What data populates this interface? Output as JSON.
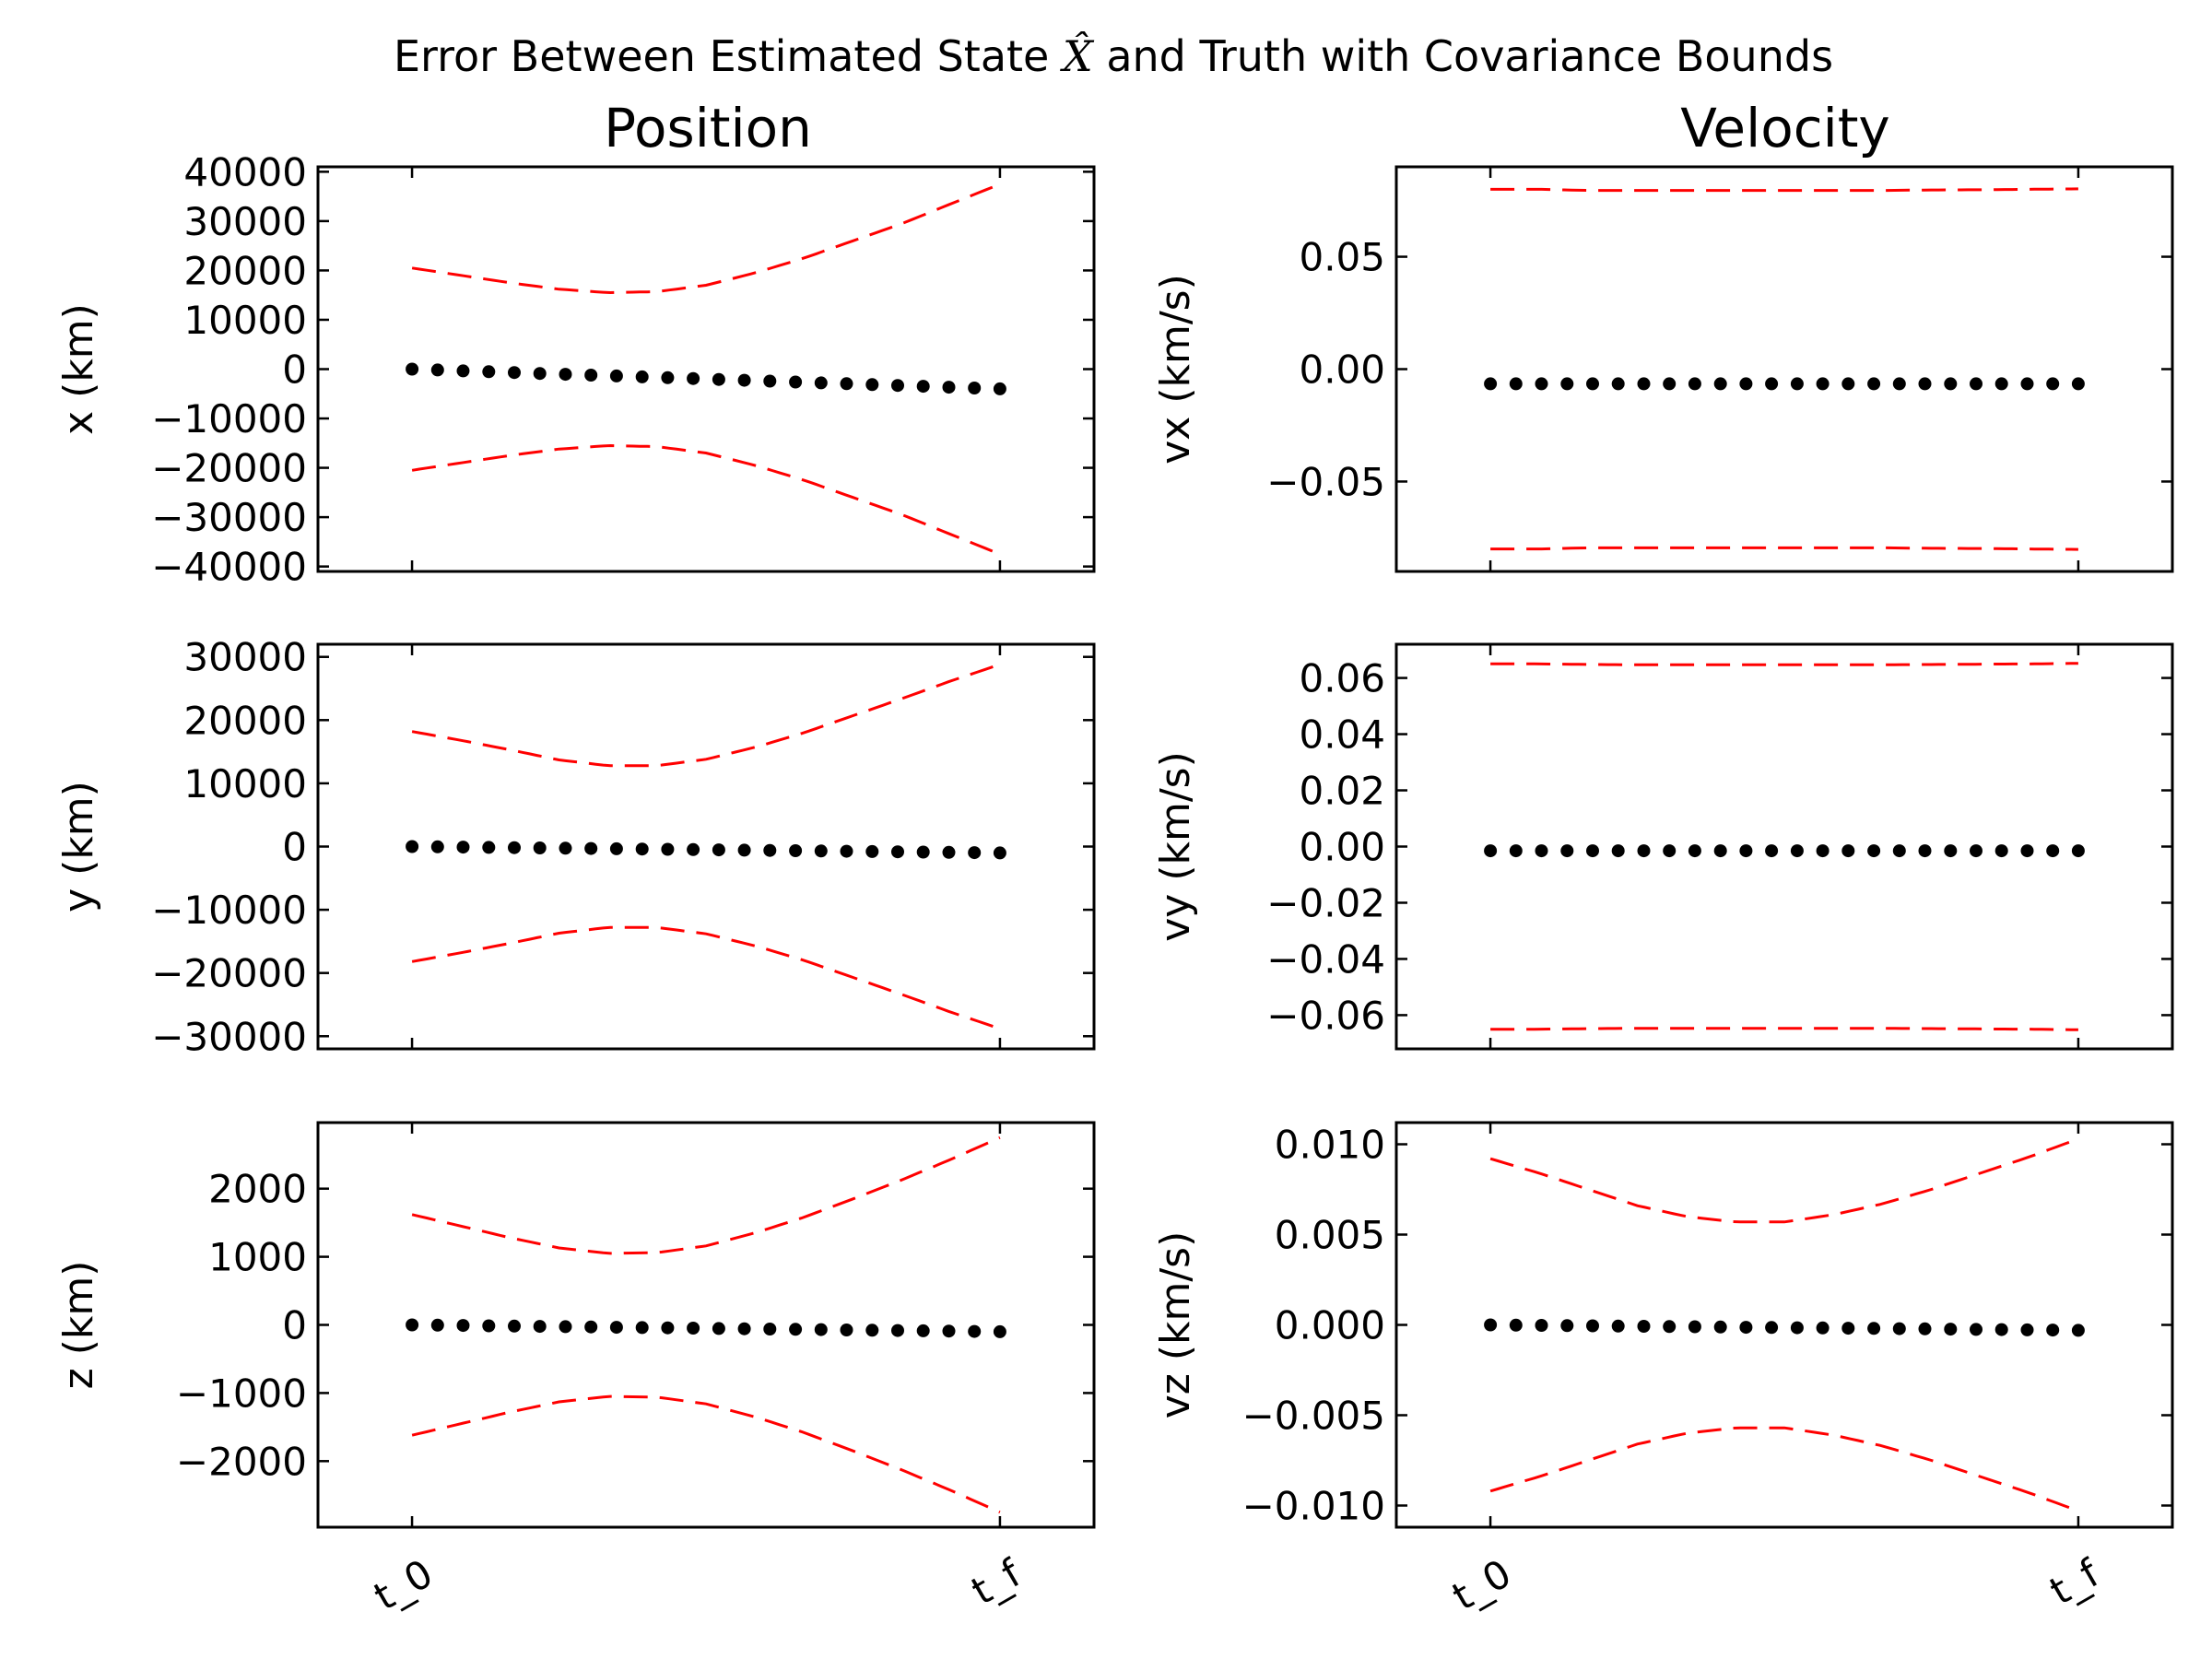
{
  "suptitle": {
    "before": "Error Between Estimated State ",
    "math": "X̂",
    "after": " and Truth with Covariance Bounds"
  },
  "column_titles": [
    "Position",
    "Velocity"
  ],
  "colors": {
    "points": "#000000",
    "bounds": "#ff0000"
  },
  "chart_data": [
    {
      "type": "scatter",
      "ylabel": "x (km)",
      "ylim": [
        -41000,
        41000
      ],
      "yticks": [
        -40000,
        -30000,
        -20000,
        -10000,
        0,
        10000,
        20000,
        30000,
        40000
      ],
      "ytick_labels": [
        "−40000",
        "−30000",
        "−20000",
        "−10000",
        "0",
        "10000",
        "20000",
        "30000",
        "40000"
      ],
      "xticks": [],
      "xlim": [
        -0.16,
        1.16
      ],
      "grid": false,
      "error": {
        "start": 0,
        "end": -4000,
        "count": 24
      },
      "bound": [
        20500,
        19000,
        17500,
        16200,
        15500,
        15700,
        17000,
        19500,
        22500,
        26000,
        29500,
        33500,
        37500
      ]
    },
    {
      "type": "scatter",
      "ylabel": "vx (km/s)",
      "ylim": [
        -0.09,
        0.09
      ],
      "yticks": [
        -0.05,
        0,
        0.05
      ],
      "ytick_labels": [
        "−0.05",
        "0.00",
        "0.05"
      ],
      "xticks": [],
      "xlim": [
        -0.16,
        1.16
      ],
      "grid": false,
      "error": {
        "start": -0.0065,
        "end": -0.0065,
        "count": 24
      },
      "bound": [
        0.08,
        0.08,
        0.0795,
        0.0795,
        0.0795,
        0.0795,
        0.0795,
        0.0795,
        0.0795,
        0.0797,
        0.0798,
        0.08,
        0.0802
      ]
    },
    {
      "type": "scatter",
      "ylabel": "y (km)",
      "ylim": [
        -32000,
        32000
      ],
      "yticks": [
        -30000,
        -20000,
        -10000,
        0,
        10000,
        20000,
        30000
      ],
      "ytick_labels": [
        "−30000",
        "−20000",
        "−10000",
        "0",
        "10000",
        "20000",
        "30000"
      ],
      "xticks": [],
      "xlim": [
        -0.16,
        1.16
      ],
      "grid": false,
      "error": {
        "start": 0,
        "end": -1000,
        "count": 24
      },
      "bound": [
        18200,
        16800,
        15300,
        13700,
        12800,
        12800,
        13800,
        15700,
        18000,
        20700,
        23400,
        26200,
        28800
      ]
    },
    {
      "type": "scatter",
      "ylabel": "vy (km/s)",
      "ylim": [
        -0.072,
        0.072
      ],
      "yticks": [
        -0.06,
        -0.04,
        -0.02,
        0,
        0.02,
        0.04,
        0.06
      ],
      "ytick_labels": [
        "−0.06",
        "−0.04",
        "−0.02",
        "0.00",
        "0.02",
        "0.04",
        "0.06"
      ],
      "xticks": [],
      "xlim": [
        -0.16,
        1.16
      ],
      "grid": false,
      "error": {
        "start": -0.0015,
        "end": -0.0015,
        "count": 24
      },
      "bound": [
        0.065,
        0.065,
        0.0648,
        0.0647,
        0.0647,
        0.0647,
        0.0647,
        0.0647,
        0.0647,
        0.0648,
        0.0649,
        0.065,
        0.0652
      ]
    },
    {
      "type": "scatter",
      "ylabel": "z (km)",
      "ylim": [
        -2970,
        2970
      ],
      "yticks": [
        -2000,
        -1000,
        0,
        1000,
        2000
      ],
      "ytick_labels": [
        "−2000",
        "−1000",
        "0",
        "1000",
        "2000"
      ],
      "xticks": [
        "t_0",
        "t_f"
      ],
      "xlim": [
        -0.16,
        1.16
      ],
      "grid": false,
      "error": {
        "start": 0,
        "end": -100,
        "count": 24
      },
      "bound": [
        1620,
        1450,
        1280,
        1130,
        1050,
        1060,
        1160,
        1350,
        1580,
        1850,
        2130,
        2430,
        2750
      ]
    },
    {
      "type": "scatter",
      "ylabel": "vz (km/s)",
      "ylim": [
        -0.0112,
        0.0112
      ],
      "yticks": [
        -0.01,
        -0.005,
        0,
        0.005,
        0.01
      ],
      "ytick_labels": [
        "−0.010",
        "−0.005",
        "0.000",
        "0.005",
        "0.010"
      ],
      "xticks": [
        "t_0",
        "t_f"
      ],
      "xlim": [
        -0.16,
        1.16
      ],
      "grid": false,
      "error": {
        "start": 0,
        "end": -0.0003,
        "count": 24
      },
      "bound": [
        0.0092,
        0.0084,
        0.0075,
        0.0066,
        0.006,
        0.0057,
        0.0057,
        0.0061,
        0.0067,
        0.0075,
        0.0084,
        0.0093,
        0.0103
      ]
    }
  ]
}
